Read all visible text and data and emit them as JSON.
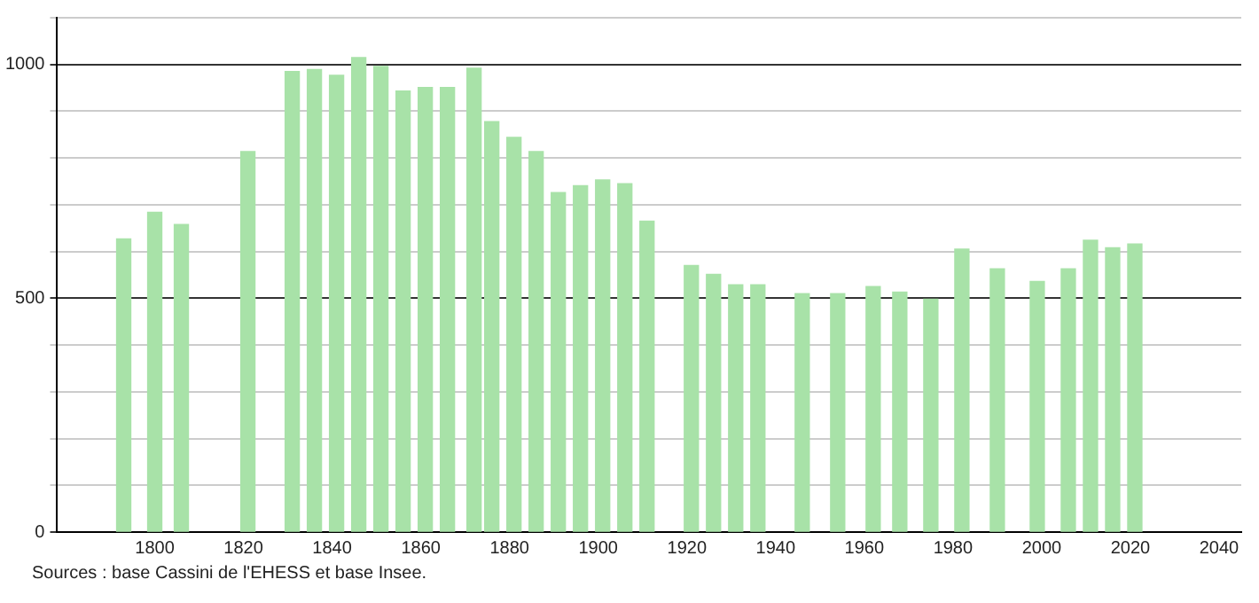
{
  "chart_data": {
    "type": "bar",
    "x": [
      1793,
      1800,
      1806,
      1821,
      1831,
      1836,
      1841,
      1846,
      1851,
      1856,
      1861,
      1866,
      1872,
      1876,
      1881,
      1886,
      1891,
      1896,
      1901,
      1906,
      1911,
      1921,
      1926,
      1931,
      1936,
      1946,
      1954,
      1962,
      1968,
      1975,
      1982,
      1990,
      1999,
      2006,
      2011,
      2016,
      2021
    ],
    "values": [
      627,
      684,
      658,
      814,
      985,
      989,
      977,
      1015,
      996,
      943,
      951,
      951,
      992,
      878,
      844,
      814,
      726,
      741,
      753,
      745,
      665,
      570,
      551,
      529,
      529,
      510,
      510,
      525,
      513,
      498,
      605,
      563,
      536,
      563,
      624,
      608,
      616
    ],
    "color": "#a8e2a8",
    "xlim": [
      1778,
      2045
    ],
    "xticks": [
      1800,
      1820,
      1840,
      1860,
      1880,
      1900,
      1920,
      1940,
      1960,
      1980,
      2000,
      2020,
      2040
    ],
    "ylim": [
      0,
      1100
    ],
    "yticks": [
      0,
      {
        "value": 100,
        "label": null
      },
      {
        "value": 200,
        "label": null
      },
      {
        "value": 300,
        "label": null
      },
      {
        "value": 400,
        "label": null
      },
      500,
      {
        "value": 600,
        "label": null
      },
      {
        "value": 700,
        "label": null
      },
      {
        "value": 800,
        "label": null
      },
      {
        "value": 900,
        "label": null
      },
      1000,
      {
        "value": 1100,
        "label": null
      }
    ],
    "grid": "y",
    "legend": false,
    "annotations": [
      "Sources : base Cassini de l'EHESS et base Insee."
    ]
  }
}
